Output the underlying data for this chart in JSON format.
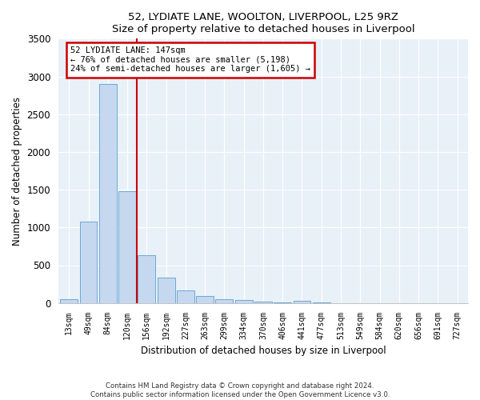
{
  "title1": "52, LYDIATE LANE, WOOLTON, LIVERPOOL, L25 9RZ",
  "title2": "Size of property relative to detached houses in Liverpool",
  "xlabel": "Distribution of detached houses by size in Liverpool",
  "ylabel": "Number of detached properties",
  "footnote1": "Contains HM Land Registry data © Crown copyright and database right 2024.",
  "footnote2": "Contains public sector information licensed under the Open Government Licence v3.0.",
  "categories": [
    "13sqm",
    "49sqm",
    "84sqm",
    "120sqm",
    "156sqm",
    "192sqm",
    "227sqm",
    "263sqm",
    "299sqm",
    "334sqm",
    "370sqm",
    "406sqm",
    "441sqm",
    "477sqm",
    "513sqm",
    "549sqm",
    "584sqm",
    "620sqm",
    "656sqm",
    "691sqm",
    "727sqm"
  ],
  "values": [
    50,
    1080,
    2900,
    1480,
    630,
    340,
    170,
    90,
    55,
    40,
    20,
    10,
    30,
    5,
    0,
    0,
    0,
    0,
    0,
    0,
    0
  ],
  "bar_color": "#c5d8ef",
  "bar_edge_color": "#6aaad4",
  "vline_color": "#cc0000",
  "vline_x": 3.5,
  "annotation_line1": "52 LYDIATE LANE: 147sqm",
  "annotation_line2": "← 76% of detached houses are smaller (5,198)",
  "annotation_line3": "24% of semi-detached houses are larger (1,605) →",
  "annotation_box_color": "#cc0000",
  "background_color": "#e8f0f8",
  "ylim": [
    0,
    3500
  ],
  "yticks": [
    0,
    500,
    1000,
    1500,
    2000,
    2500,
    3000,
    3500
  ]
}
